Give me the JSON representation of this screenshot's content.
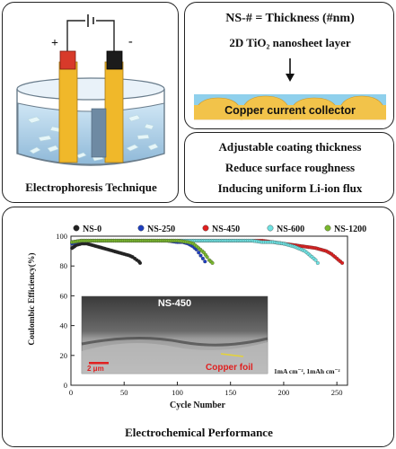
{
  "electrophoresis": {
    "title": "Electrophoresis Technique",
    "plus": "+",
    "minus": "-"
  },
  "definition": {
    "line1": "NS-# = Thickness (#nm)",
    "line2": "2D TiO₂ nanosheet layer",
    "collector": "Copper current collector"
  },
  "benefits": {
    "items": [
      "Adjustable coating thickness",
      "Reduce surface roughness",
      "Inducing uniform Li-ion flux"
    ]
  },
  "performance": {
    "title": "Electrochemical Performance",
    "inset_label": "NS-450",
    "scalebar_label": "2 μm",
    "foil_label": "Copper foil",
    "condition": "1mA cm⁻², 1mAh cm⁻²"
  },
  "chart_data": {
    "type": "scatter",
    "xlabel": "Cycle Number",
    "ylabel": "Coulombic Efficiency(%)",
    "xlim": [
      0,
      260
    ],
    "ylim": [
      0,
      100
    ],
    "xticks": [
      0,
      50,
      100,
      150,
      200,
      250
    ],
    "yticks": [
      0,
      20,
      40,
      60,
      80,
      100
    ],
    "series": [
      {
        "name": "NS-0",
        "color": "#222222",
        "x": [
          1,
          5,
          10,
          15,
          20,
          25,
          30,
          35,
          40,
          45,
          50,
          55,
          58,
          60,
          62,
          64,
          65
        ],
        "y": [
          92,
          94,
          95,
          95,
          94,
          93,
          92,
          91,
          90,
          89,
          88,
          87,
          86,
          85,
          84,
          83,
          82
        ]
      },
      {
        "name": "NS-250",
        "color": "#1f3fbf",
        "x": [
          1,
          10,
          20,
          30,
          40,
          50,
          60,
          70,
          80,
          90,
          100,
          105,
          110,
          115,
          118,
          120,
          122,
          124,
          126
        ],
        "y": [
          95,
          97,
          97,
          97,
          97,
          97,
          97,
          97,
          97,
          97,
          96,
          96,
          95,
          93,
          91,
          89,
          87,
          85,
          83
        ]
      },
      {
        "name": "NS-450",
        "color": "#e02020",
        "x": [
          1,
          10,
          20,
          40,
          60,
          80,
          100,
          120,
          140,
          160,
          170,
          180,
          190,
          200,
          210,
          220,
          230,
          240,
          245,
          250,
          255
        ],
        "y": [
          96,
          97,
          97,
          97,
          97,
          97,
          97,
          97,
          97,
          97,
          97,
          97,
          96,
          95,
          94,
          93,
          92,
          90,
          88,
          85,
          82
        ]
      },
      {
        "name": "NS-600",
        "color": "#6fe3e3",
        "x": [
          1,
          10,
          20,
          40,
          60,
          80,
          100,
          120,
          140,
          160,
          170,
          180,
          190,
          200,
          210,
          220,
          225,
          230,
          232
        ],
        "y": [
          96,
          97,
          97,
          97,
          97,
          97,
          97,
          97,
          97,
          97,
          97,
          96,
          96,
          95,
          93,
          90,
          87,
          84,
          82
        ]
      },
      {
        "name": "NS-1200",
        "color": "#7ab82e",
        "x": [
          1,
          10,
          20,
          40,
          60,
          80,
          100,
          110,
          115,
          120,
          125,
          128,
          130,
          133
        ],
        "y": [
          96,
          97,
          97,
          97,
          97,
          97,
          97,
          96,
          95,
          92,
          89,
          86,
          84,
          82
        ]
      }
    ]
  }
}
